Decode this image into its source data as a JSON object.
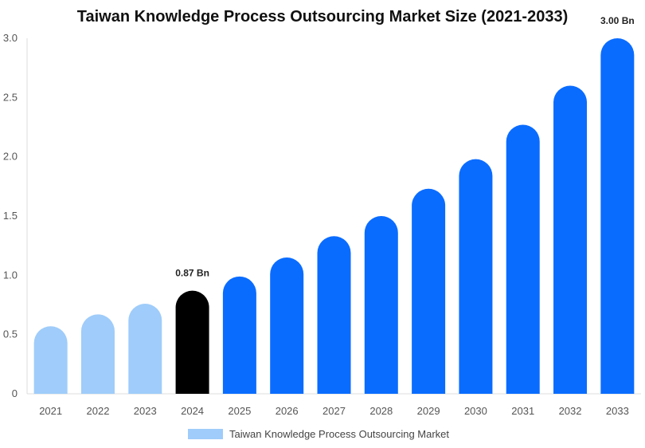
{
  "chart_data": {
    "type": "bar",
    "title": "Taiwan Knowledge Process Outsourcing Market Size (2021-2033)",
    "categories": [
      "2021",
      "2022",
      "2023",
      "2024",
      "2025",
      "2026",
      "2027",
      "2028",
      "2029",
      "2030",
      "2031",
      "2032",
      "2033"
    ],
    "values": [
      0.57,
      0.67,
      0.76,
      0.87,
      0.99,
      1.15,
      1.33,
      1.5,
      1.73,
      1.98,
      2.27,
      2.6,
      3.0
    ],
    "bar_colors": [
      "#9fccfa",
      "#9fccfa",
      "#9fccfa",
      "#000000",
      "#0a6cff",
      "#0a6cff",
      "#0a6cff",
      "#0a6cff",
      "#0a6cff",
      "#0a6cff",
      "#0a6cff",
      "#0a6cff",
      "#0a6cff"
    ],
    "data_labels": [
      {
        "category": "2024",
        "text": "0.87 Bn"
      },
      {
        "category": "2033",
        "text": "3.00 Bn"
      }
    ],
    "ylim": [
      0,
      3.0
    ],
    "yticks": [
      "0",
      "0.5",
      "1.0",
      "1.5",
      "2.0",
      "2.5",
      "3.0"
    ],
    "ytick_values": [
      0,
      0.5,
      1.0,
      1.5,
      2.0,
      2.5,
      3.0
    ],
    "grid": false,
    "legend": {
      "label": "Taiwan Knowledge Process Outsourcing Market",
      "color": "#9fccfa",
      "position": "bottom"
    },
    "xlabel": "",
    "ylabel": ""
  }
}
